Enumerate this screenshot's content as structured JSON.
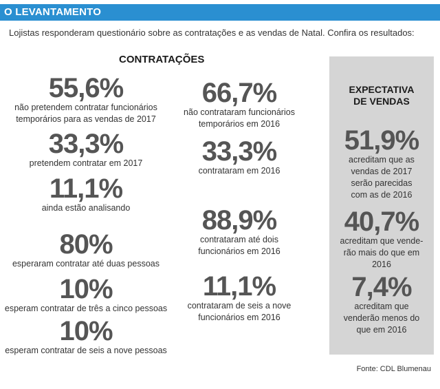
{
  "header": {
    "title": "O LEVANTAMENTO"
  },
  "intro": "Lojistas responderam questionário sobre as contratações e as vendas de Natal. Confira os resultados:",
  "contratacoes": {
    "title": "CONTRATAÇÕES",
    "left": [
      {
        "value": "55,6%",
        "lines": [
          "não pretendem contratar funcionários",
          "temporários para as vendas de 2017"
        ]
      },
      {
        "value": "33,3%",
        "lines": [
          "pretendem contratar em 2017"
        ]
      },
      {
        "value": "11,1%",
        "lines": [
          "ainda estão analisando"
        ]
      },
      {
        "value": "80%",
        "lines": [
          "esperaram contratar até duas pessoas"
        ]
      },
      {
        "value": "10%",
        "lines": [
          "esperam contratar de três a cinco pessoas"
        ]
      },
      {
        "value": "10%",
        "lines": [
          "esperam contratar de seis a nove pessoas"
        ]
      }
    ],
    "right": [
      {
        "value": "66,7%",
        "lines": [
          "não contrataram funcionários",
          "temporários em 2016"
        ]
      },
      {
        "value": "33,3%",
        "lines": [
          "contrataram em 2016"
        ]
      },
      {
        "value": "88,9%",
        "lines": [
          "contrataram até dois",
          "funcionários em 2016"
        ]
      },
      {
        "value": "11,1%",
        "lines": [
          "contrataram de seis a nove",
          "funcionários em 2016"
        ]
      }
    ]
  },
  "expectativa": {
    "title_lines": [
      "EXPECTATIVA",
      "DE VENDAS"
    ],
    "items": [
      {
        "value": "51,9%",
        "lines": [
          "acreditam que as",
          "vendas de 2017",
          "serão parecidas",
          "com as de 2016"
        ]
      },
      {
        "value": "40,7%",
        "lines": [
          "acreditam que vende-",
          "rão mais do que em",
          "2016"
        ]
      },
      {
        "value": "7,4%",
        "lines": [
          "acreditam que",
          "venderão menos do",
          "que em 2016"
        ]
      }
    ]
  },
  "source": "Fonte: CDL Blumenau",
  "colors": {
    "header": "#2a8fd1",
    "panel": "#d5d5d5",
    "numbers": "#555555"
  }
}
